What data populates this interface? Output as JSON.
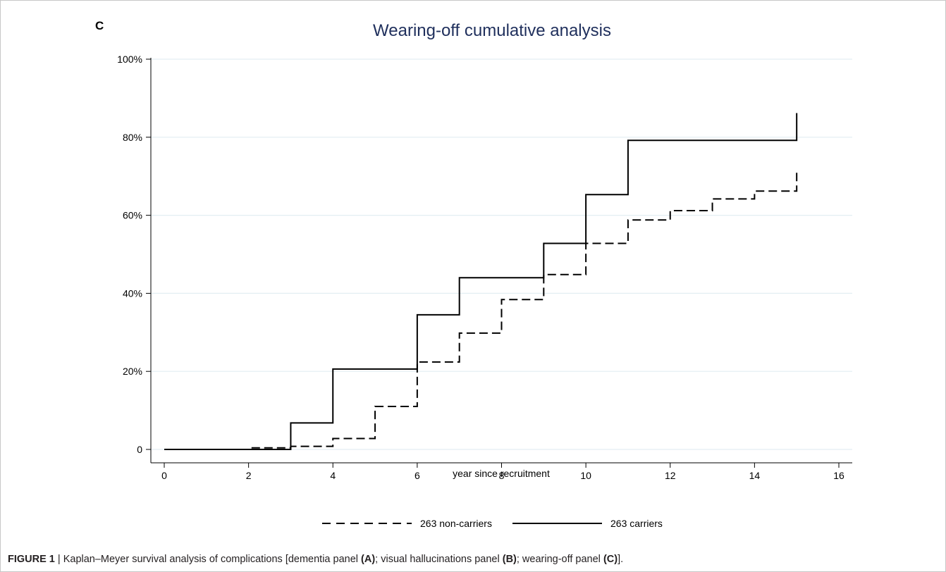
{
  "panel_label": "C",
  "caption": {
    "figure_label": "FIGURE 1",
    "separator": " | ",
    "text_1": "Kaplan–Meyer survival analysis of complications [dementia panel ",
    "panel_a": "(A)",
    "text_2": "; visual hallucinations panel ",
    "panel_b": "(B)",
    "text_3": "; wearing-off panel ",
    "panel_c": "(C)",
    "text_4": "]."
  },
  "colors": {
    "title": "#1f2f5c",
    "axis": "#000000",
    "grid": "#e3eef2",
    "series": "#000000"
  },
  "chart_data": {
    "type": "line",
    "step": true,
    "title": "Wearing-off cumulative analysis",
    "xlabel": "year since recruitment",
    "ylabel": "",
    "xlim": [
      0,
      16
    ],
    "ylim": [
      0,
      1
    ],
    "x_ticks": [
      0,
      2,
      4,
      6,
      8,
      10,
      12,
      14,
      16
    ],
    "y_ticks": [
      0,
      0.2,
      0.4,
      0.6,
      0.8,
      1.0
    ],
    "y_tick_labels": [
      "0",
      "20%",
      "40%",
      "60%",
      "80%",
      "100%"
    ],
    "grid": "horizontal",
    "legend_position": "bottom",
    "series": [
      {
        "name": "263 non-carriers",
        "style": "dashed",
        "x": [
          0,
          2,
          3,
          4,
          5,
          6,
          7,
          8,
          9,
          10,
          11,
          12,
          13,
          14,
          15
        ],
        "y": [
          0,
          0.004,
          0.008,
          0.028,
          0.11,
          0.224,
          0.298,
          0.384,
          0.448,
          0.528,
          0.588,
          0.612,
          0.642,
          0.662,
          0.716
        ]
      },
      {
        "name": "263 carriers",
        "style": "solid",
        "x": [
          0,
          3,
          4,
          6,
          7,
          9,
          10,
          11,
          15
        ],
        "y": [
          0,
          0.068,
          0.206,
          0.345,
          0.44,
          0.528,
          0.653,
          0.792,
          0.862
        ]
      }
    ]
  }
}
